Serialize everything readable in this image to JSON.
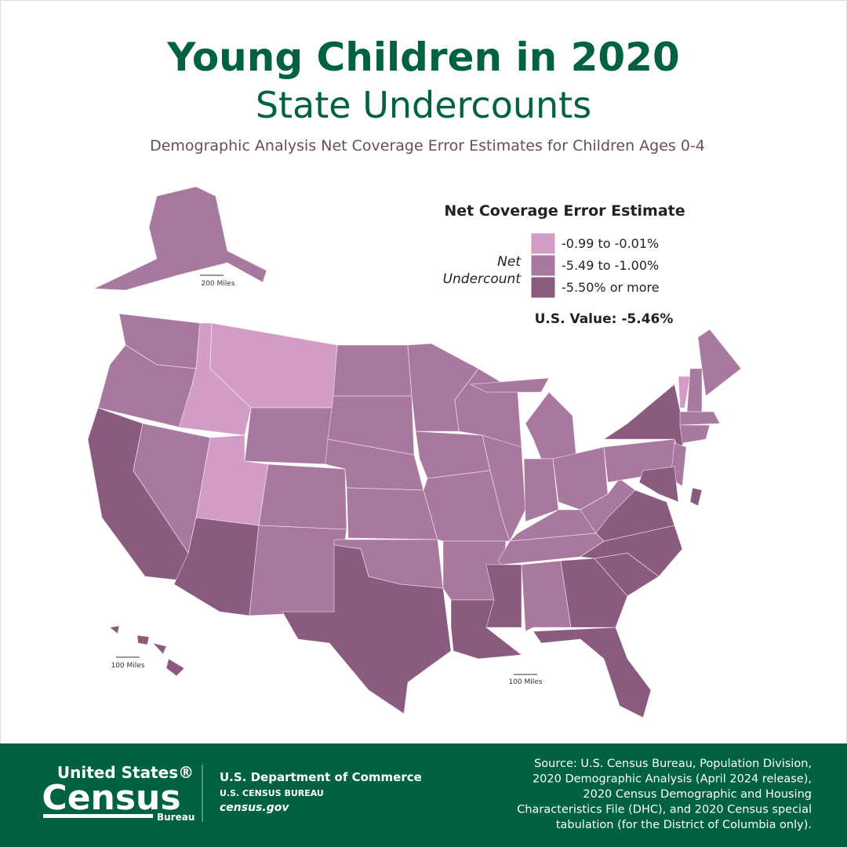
{
  "header": {
    "title": "Young Children in 2020",
    "subtitle": "State Undercounts",
    "description": "Demographic Analysis Net Coverage Error Estimates for Children Ages 0-4"
  },
  "legend": {
    "title": "Net Coverage Error Estimate",
    "group_label": [
      "Net",
      "Undercount"
    ],
    "classes": [
      {
        "label": "-0.99 to -0.01%",
        "color": "#d29cc6"
      },
      {
        "label": "-5.49 to -1.00%",
        "color": "#a8789f"
      },
      {
        "label": "-5.50% or more",
        "color": "#8a5a7f"
      }
    ],
    "us_value": "U.S. Value: -5.46%"
  },
  "map": {
    "scale_labels": [
      "200 Miles",
      "100 Miles",
      "100 Miles"
    ]
  },
  "footer": {
    "logo": [
      "United States®",
      "Census",
      "Bureau"
    ],
    "department": "U.S. Department of Commerce",
    "bureau": "U.S. CENSUS BUREAU",
    "website": "census.gov",
    "source": [
      "Source: U.S. Census Bureau, Population Division,",
      "2020 Demographic Analysis (April 2024 release),",
      "2020 Census Demographic and Housing",
      "Characteristics File (DHC), and 2020 Census special",
      "tabulation (for the District of Columbia only)."
    ]
  }
}
